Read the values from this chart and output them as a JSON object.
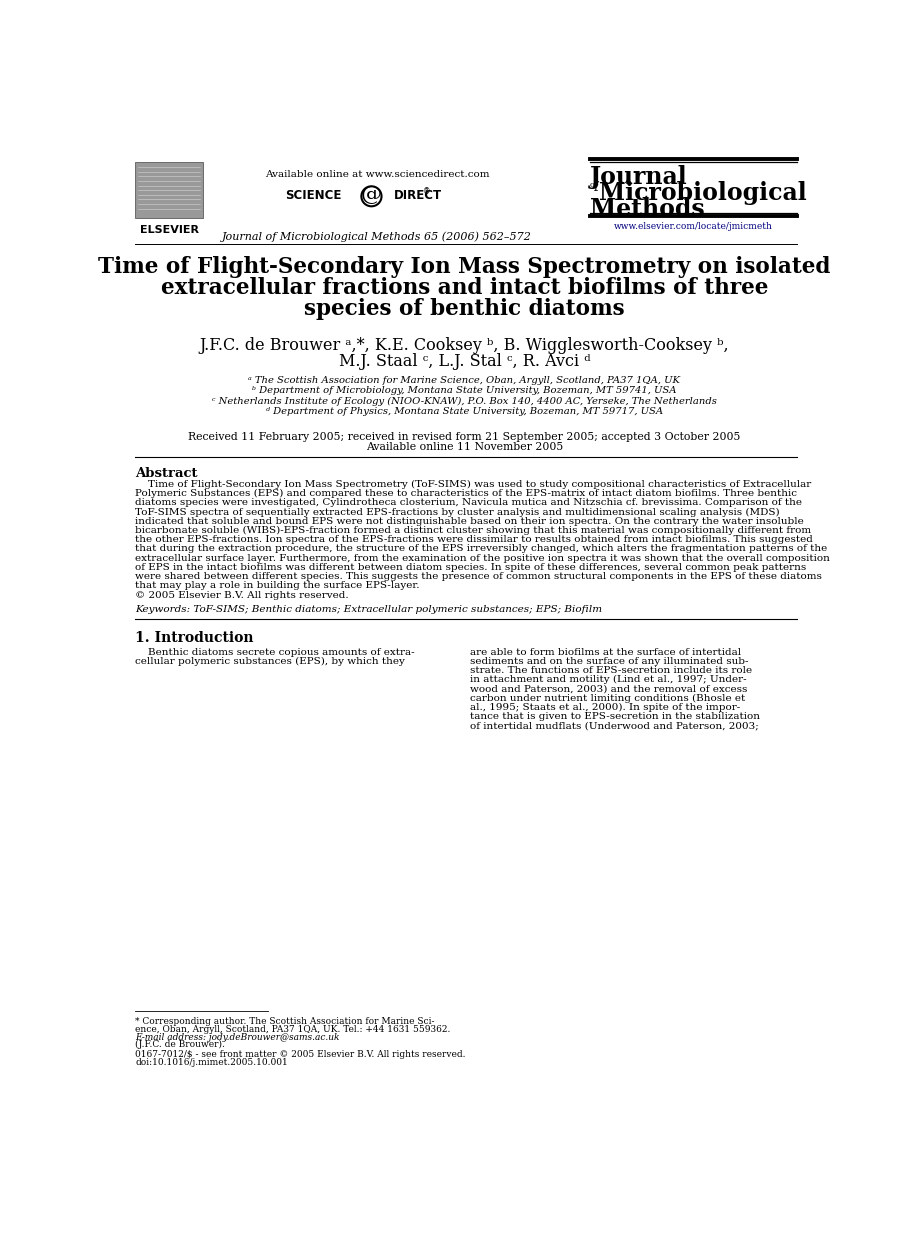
{
  "bg_color": "#ffffff",
  "header": {
    "available_online": "Available online at www.sciencedirect.com",
    "journal_name_line1": "Journal",
    "journal_name_of": "of",
    "journal_name_line2": "Microbiological",
    "journal_name_line3": "Methods",
    "journal_url": "www.elsevier.com/locate/jmicmeth",
    "journal_cite": "Journal of Microbiological Methods 65 (2006) 562–572",
    "elsevier_text": "ELSEVIER"
  },
  "title_lines": [
    "Time of Flight-Secondary Ion Mass Spectrometry on isolated",
    "extracellular fractions and intact biofilms of three",
    "species of benthic diatoms"
  ],
  "author_lines": [
    "J.F.C. de Brouwer ᵃ,*, K.E. Cooksey ᵇ, B. Wigglesworth-Cooksey ᵇ,",
    "M.J. Staal ᶜ, L.J. Stal ᶜ, R. Avci ᵈ"
  ],
  "affiliations": [
    "ᵃ The Scottish Association for Marine Science, Oban, Argyll, Scotland, PA37 1QA, UK",
    "ᵇ Department of Microbiology, Montana State University, Bozeman, MT 59741, USA",
    "ᶜ Netherlands Institute of Ecology (NIOO-KNAW), P.O. Box 140, 4400 AC, Yerseke, The Netherlands",
    "ᵈ Department of Physics, Montana State University, Bozeman, MT 59717, USA"
  ],
  "received_lines": [
    "Received 11 February 2005; received in revised form 21 September 2005; accepted 3 October 2005",
    "Available online 11 November 2005"
  ],
  "abstract_title": "Abstract",
  "abstract_lines": [
    "    Time of Flight-Secondary Ion Mass Spectrometry (ToF-SIMS) was used to study compositional characteristics of Extracellular",
    "Polymeric Substances (EPS) and compared these to characteristics of the EPS-matrix of intact diatom biofilms. Three benthic",
    "diatoms species were investigated, Cylindrotheca closterium, Navicula mutica and Nitzschia cf. brevissima. Comparison of the",
    "ToF-SIMS spectra of sequentially extracted EPS-fractions by cluster analysis and multidimensional scaling analysis (MDS)",
    "indicated that soluble and bound EPS were not distinguishable based on their ion spectra. On the contrary the water insoluble",
    "bicarbonate soluble (WIBS)-EPS-fraction formed a distinct cluster showing that this material was compositionally different from",
    "the other EPS-fractions. Ion spectra of the EPS-fractions were dissimilar to results obtained from intact biofilms. This suggested",
    "that during the extraction procedure, the structure of the EPS irreversibly changed, which alters the fragmentation patterns of the",
    "extracellular surface layer. Furthermore, from the examination of the positive ion spectra it was shown that the overall composition",
    "of EPS in the intact biofilms was different between diatom species. In spite of these differences, several common peak patterns",
    "were shared between different species. This suggests the presence of common structural components in the EPS of these diatoms",
    "that may play a role in building the surface EPS-layer.",
    "© 2005 Elsevier B.V. All rights reserved."
  ],
  "keywords": "Keywords: ToF-SIMS; Benthic diatoms; Extracellular polymeric substances; EPS; Biofilm",
  "section1_title": "1. Introduction",
  "section1_col1_lines": [
    "    Benthic diatoms secrete copious amounts of extra-",
    "cellular polymeric substances (EPS), by which they"
  ],
  "section1_col2_lines": [
    "are able to form biofilms at the surface of intertidal",
    "sediments and on the surface of any illuminated sub-",
    "strate. The functions of EPS-secretion include its role",
    "in attachment and motility (Lind et al., 1997; Under-",
    "wood and Paterson, 2003) and the removal of excess",
    "carbon under nutrient limiting conditions (Bhosle et",
    "al., 1995; Staats et al., 2000). In spite of the impor-",
    "tance that is given to EPS-secretion in the stabilization",
    "of intertidal mudflats (Underwood and Paterson, 2003;"
  ],
  "footnote_star_lines": [
    "* Corresponding author. The Scottish Association for Marine Sci-",
    "ence, Oban, Argyll, Scotland, PA37 1QA, UK. Tel.: +44 1631 559362.",
    "E-mail address: jody.deBrouwer@sams.ac.uk",
    "(J.F.C. de Brouwer)."
  ],
  "footnote_bottom_lines": [
    "0167-7012/$ - see front matter © 2005 Elsevier B.V. All rights reserved.",
    "doi:10.1016/j.mimet.2005.10.001"
  ]
}
